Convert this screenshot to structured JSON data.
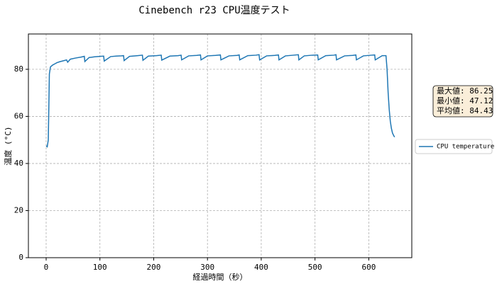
{
  "chart_data": {
    "type": "line",
    "title": "Cinebench r23 CPU温度テスト",
    "xlabel": "経過時間（秒）",
    "ylabel": "温度 (°C)",
    "x": [
      0,
      2,
      4,
      6,
      8,
      12,
      16,
      20,
      25,
      30,
      35,
      38,
      40,
      45,
      55,
      65,
      71,
      72,
      80,
      90,
      100,
      107,
      108,
      120,
      130,
      140,
      144,
      145,
      155,
      170,
      179,
      180,
      190,
      205,
      214,
      215,
      230,
      245,
      251,
      252,
      265,
      280,
      287,
      288,
      300,
      315,
      324,
      325,
      340,
      355,
      359,
      360,
      375,
      390,
      396,
      397,
      410,
      425,
      432,
      433,
      445,
      460,
      469,
      470,
      480,
      495,
      505,
      506,
      520,
      535,
      539,
      540,
      555,
      570,
      576,
      577,
      590,
      605,
      611,
      612,
      625,
      632,
      634,
      636,
      638,
      640,
      642,
      644,
      646,
      648
    ],
    "series": [
      {
        "name": "CPU temperature",
        "color": "#1f77b4",
        "values": [
          47.5,
          47.1,
          50,
          78,
          81,
          81.8,
          82.3,
          82.8,
          83.2,
          83.5,
          83.8,
          84,
          83,
          84.3,
          84.8,
          85.2,
          85.5,
          83.3,
          85,
          85.3,
          85.5,
          85.6,
          83.5,
          85.4,
          85.6,
          85.7,
          85.8,
          83.7,
          85.5,
          85.8,
          86,
          83.8,
          85.6,
          85.8,
          86,
          83.9,
          85.6,
          85.8,
          86,
          84,
          85.7,
          85.9,
          86.1,
          84,
          85.7,
          85.9,
          86.1,
          84,
          85.7,
          85.9,
          86.1,
          84,
          85.8,
          86,
          86.2,
          84,
          85.7,
          85.9,
          86.1,
          84,
          85.7,
          86,
          86.2,
          84,
          85.7,
          86,
          86.1,
          84,
          85.8,
          86,
          86.2,
          84,
          85.7,
          85.9,
          86.1,
          84,
          85.7,
          86,
          86.1,
          84,
          85.8,
          85.8,
          80,
          70,
          63,
          58,
          55,
          53,
          52,
          51.2
        ]
      }
    ],
    "xlim": [
      -33,
      680
    ],
    "xticks": [
      0,
      100,
      200,
      300,
      400,
      500,
      600
    ],
    "ylim": [
      0,
      95
    ],
    "yticks": [
      0,
      20,
      40,
      60,
      80
    ],
    "grid": true,
    "legend": "outside right",
    "annotation": [
      "最大値: 86.25",
      "最小値: 47.12",
      "平均値: 84.43"
    ]
  }
}
